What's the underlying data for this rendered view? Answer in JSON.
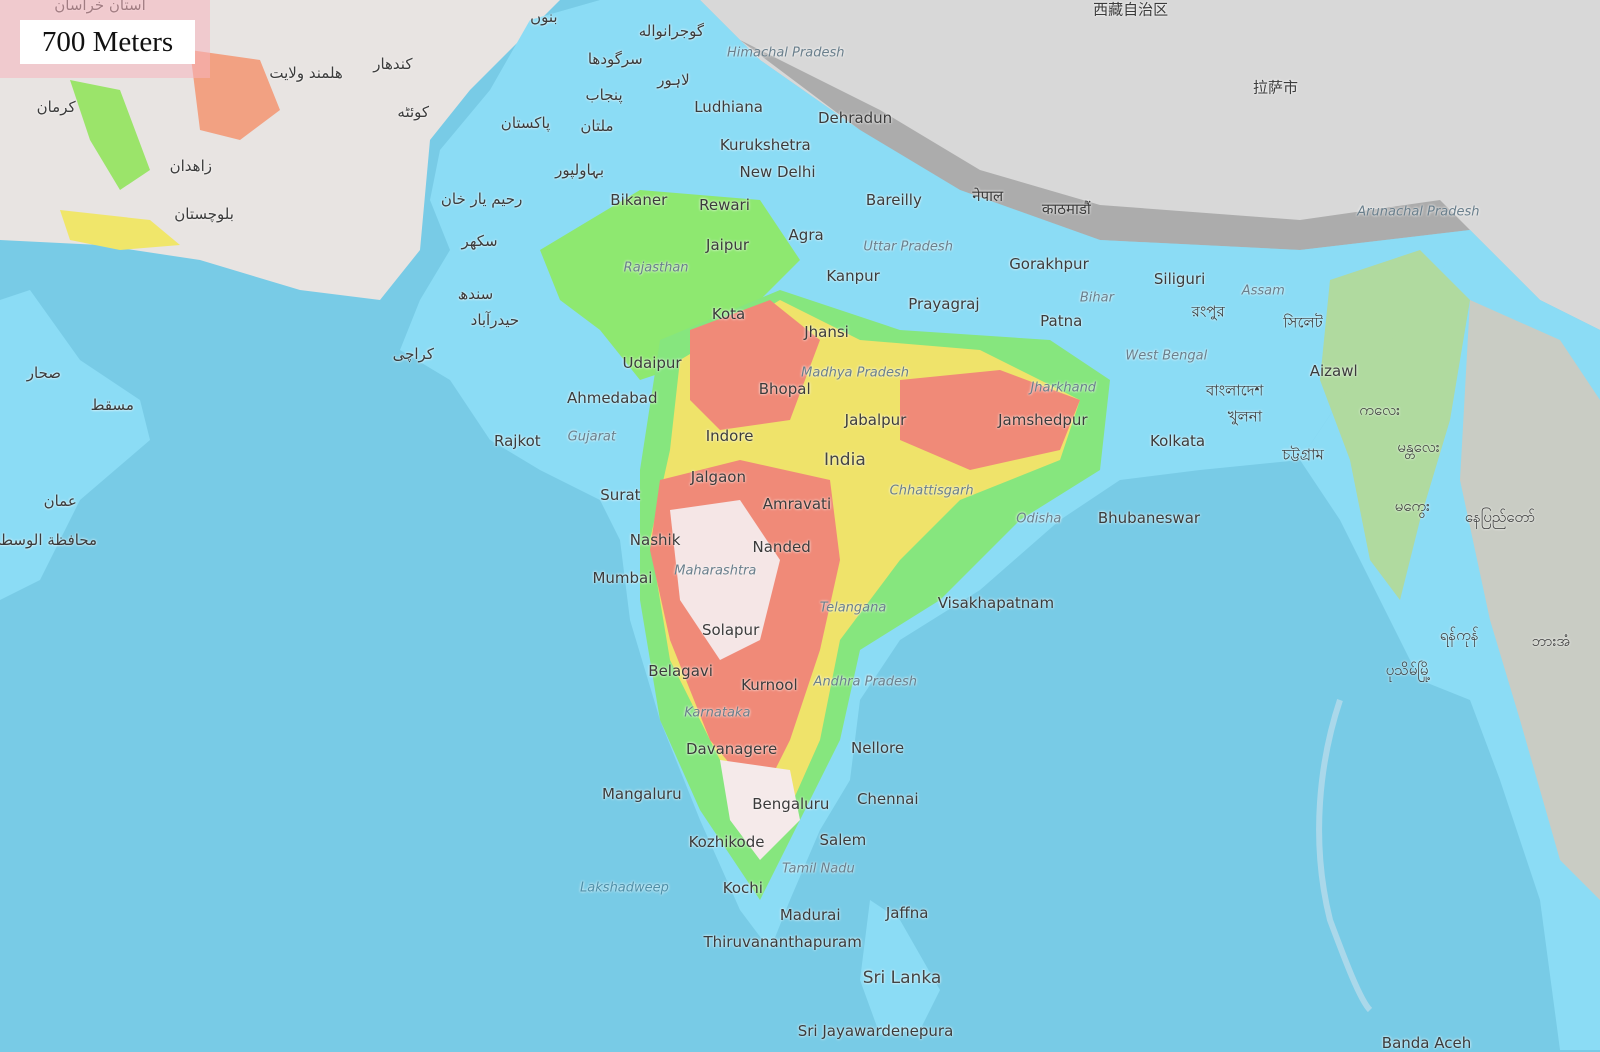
{
  "overlay": {
    "elevation_label": "700 Meters"
  },
  "colors": {
    "ocean": "#78cbe6",
    "lowland": "#8bdcf5",
    "mid": "#7ee68a",
    "high": "#f0e66a",
    "higher": "#f08a78",
    "peak": "#f4f0f0",
    "mountain_gray": "#cfcfcf"
  },
  "labels": {
    "cities": [
      "Ludhiana",
      "Dehradun",
      "Kurukshetra",
      "New Delhi",
      "Bikaner",
      "Rewari",
      "Bareilly",
      "Jaipur",
      "Agra",
      "Kanpur",
      "Gorakhpur",
      "Siliguri",
      "Kota",
      "Prayagraj",
      "Patna",
      "Jhansi",
      "Udaipur",
      "Bhopal",
      "Ahmedabad",
      "Jabalpur",
      "Jamshedpur",
      "Rajkot",
      "Indore",
      "Kolkata",
      "India",
      "Jalgaon",
      "Surat",
      "Amravati",
      "Bhubaneswar",
      "Nashik",
      "Nanded",
      "Mumbai",
      "Visakhapatnam",
      "Solapur",
      "Belagavi",
      "Kurnool",
      "Davanagere",
      "Nellore",
      "Mangaluru",
      "Chennai",
      "Bengaluru",
      "Kozhikode",
      "Salem",
      "Kochi",
      "Jaffna",
      "Madurai",
      "Thiruvananthapuram",
      "Sri Lanka",
      "Sri Jayawardenepura",
      "Aizawl",
      "Banda Aceh"
    ],
    "regions": [
      "Himachal Pradesh",
      "Uttar Pradesh",
      "Rajasthan",
      "Bihar",
      "Assam",
      "Arunachal Pradesh",
      "Madhya Pradesh",
      "Jharkhand",
      "West Bengal",
      "Gujarat",
      "Chhattisgarh",
      "Odisha",
      "Maharashtra",
      "Telangana",
      "Andhra Pradesh",
      "Karnataka",
      "Tamil Nadu",
      "Lakshadweep"
    ],
    "foreign": [
      "گوجرانواله",
      "سرگودھا",
      "لاہور",
      "پنجاب",
      "ملتان",
      "پاکستان",
      "بہاولپور",
      "رحیم یار خان",
      "سکھر",
      "سندھ",
      "حیدرآباد",
      "کراچی",
      "کرمان",
      "زاهدان",
      "کوئٹه",
      "کندهار",
      "هلمند ولایت",
      "استان خراسان",
      "بلوچستان",
      "عمان",
      "مسقط",
      "صحار",
      "नेपाल",
      "काठमाडौं",
      "বাংলাদেশ",
      "খুলনা",
      "চট্টগ্রাম",
      "রংপুর",
      "সিলেট",
      "拉萨市",
      "西藏自治区",
      "မန္တလေး",
      "မကွေး",
      "ရန်ကုန်",
      "ပုသိမ်မြို့",
      "ကလေး",
      "နေပြည်တော်",
      "ဘားအံ",
      "محافظة الوسطى",
      "بنوں"
    ]
  }
}
